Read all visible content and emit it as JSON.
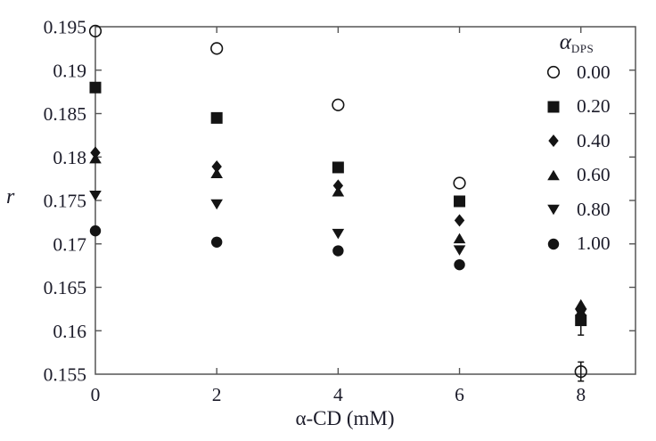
{
  "figure": {
    "background": "#ffffff",
    "text_color": "#1c1c2a",
    "axis_color": "#555555",
    "marker_color": "#141414"
  },
  "chart_data": {
    "type": "scatter",
    "title": "",
    "xlabel": "α-CD (mM)",
    "ylabel": "r",
    "xlim": [
      0,
      8.9
    ],
    "ylim": [
      0.155,
      0.195
    ],
    "grid": false,
    "frame": "box-with-inward-ticks",
    "xticks": {
      "values": [
        0,
        2,
        4,
        6,
        8
      ],
      "labels": [
        "0",
        "2",
        "4",
        "6",
        "8"
      ]
    },
    "yticks": {
      "values": [
        0.155,
        0.16,
        0.165,
        0.17,
        0.175,
        0.18,
        0.185,
        0.19,
        0.195
      ],
      "labels": [
        "0.155",
        "0.16",
        "0.165",
        "0.17",
        "0.175",
        "0.18",
        "0.185",
        "0.19",
        "0.195"
      ]
    },
    "legend": {
      "position": "top-right",
      "title_symbol": "α",
      "title_subscript": "DPS"
    },
    "x": [
      0,
      2,
      4,
      6,
      8
    ],
    "series": [
      {
        "label": "0.00",
        "marker": "circle-open",
        "y": [
          0.1945,
          0.1925,
          0.186,
          0.177,
          0.1553
        ],
        "yerr": [
          0,
          0,
          0,
          0,
          0.0011
        ]
      },
      {
        "label": "0.20",
        "marker": "square",
        "y": [
          0.188,
          0.1845,
          0.1788,
          0.1749,
          0.1612
        ],
        "yerr": [
          0,
          0,
          0,
          0,
          0.0017
        ]
      },
      {
        "label": "0.40",
        "marker": "diamond",
        "y": [
          0.1805,
          0.1789,
          0.1767,
          0.1727,
          0.1625
        ],
        "yerr": [
          0,
          0,
          0,
          0,
          0
        ]
      },
      {
        "label": "0.60",
        "marker": "triangle-up",
        "y": [
          0.1798,
          0.1781,
          0.176,
          0.1706,
          0.163
        ],
        "yerr": [
          0,
          0,
          0,
          0,
          0
        ]
      },
      {
        "label": "0.80",
        "marker": "triangle-down",
        "y": [
          0.1756,
          0.1746,
          0.1712,
          0.1693,
          0.162
        ],
        "yerr": [
          0,
          0,
          0,
          0,
          0
        ]
      },
      {
        "label": "1.00",
        "marker": "circle",
        "y": [
          0.1715,
          0.1702,
          0.1692,
          0.1676,
          0.1616
        ],
        "yerr": [
          0,
          0,
          0,
          0,
          0
        ]
      }
    ]
  }
}
